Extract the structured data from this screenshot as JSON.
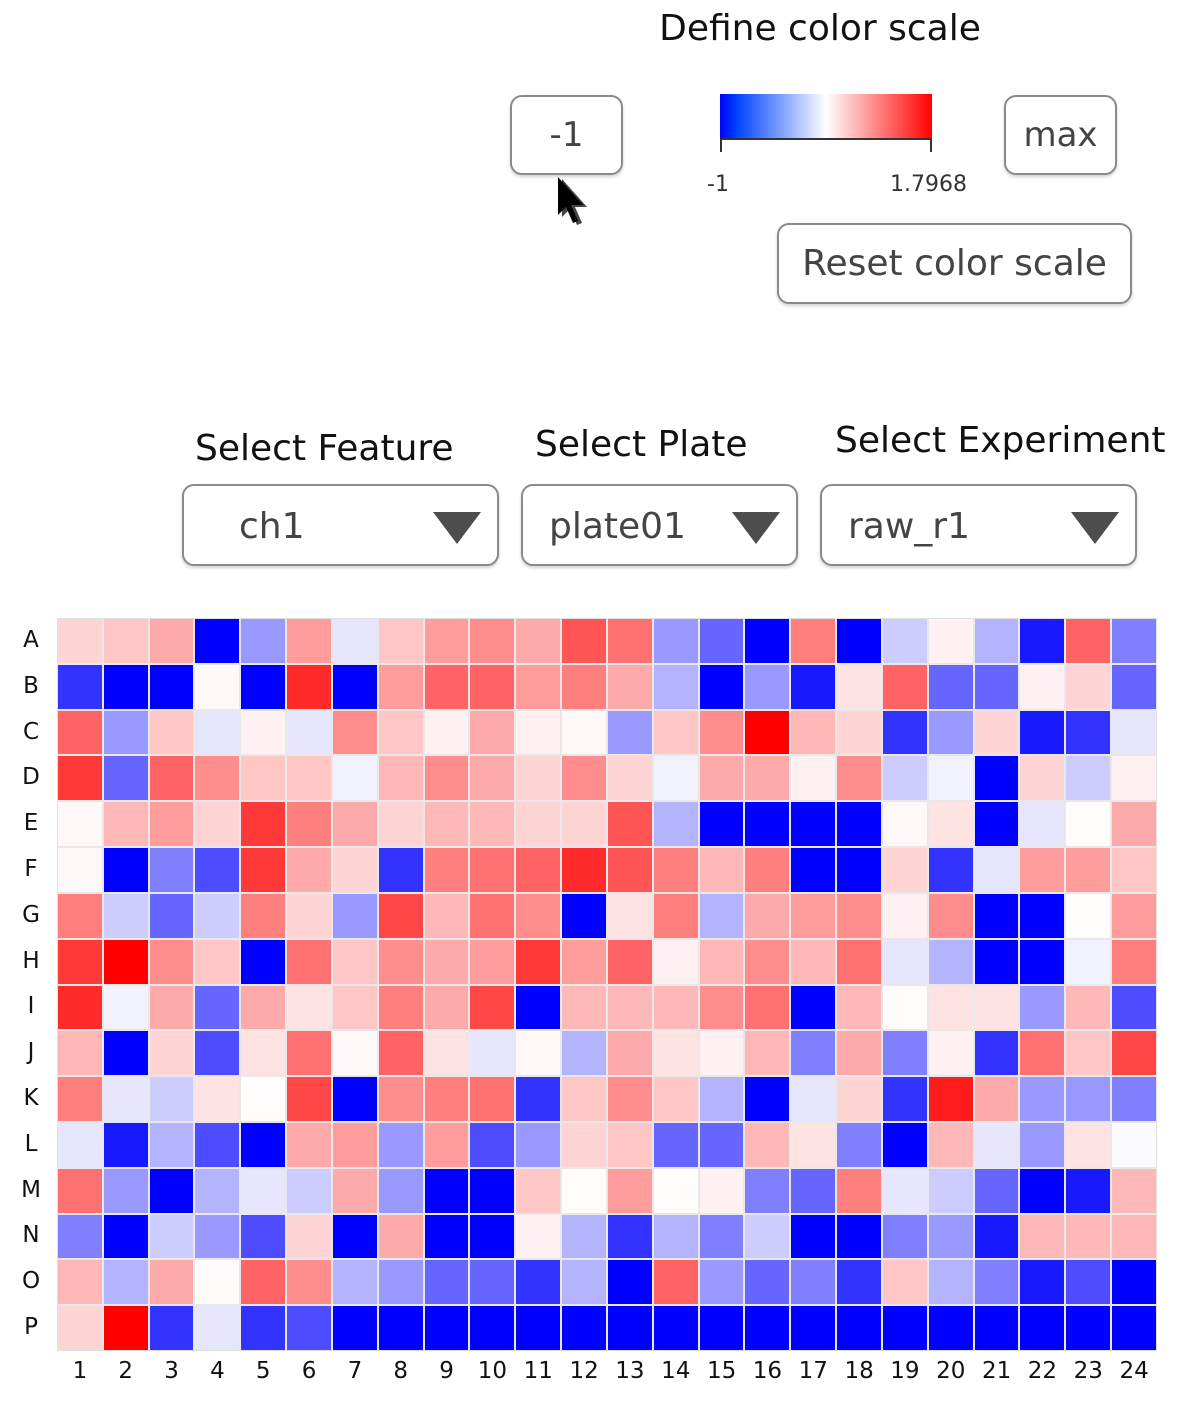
{
  "color_scale": {
    "title": "Define color scale",
    "min_value": "-1",
    "max_value": "max",
    "label_min": "-1",
    "label_max": "1.7968",
    "reset_label": "Reset color scale",
    "colors": {
      "low": "#0000ff",
      "mid": "#ffffff",
      "high": "#ff0000"
    }
  },
  "selectors": {
    "feature": {
      "label": "Select Feature",
      "value": "ch1"
    },
    "plate": {
      "label": "Select Plate",
      "value": "plate01"
    },
    "experiment": {
      "label": "Select Experiment",
      "value": "raw_r1"
    }
  },
  "plate": {
    "rows": [
      "A",
      "B",
      "C",
      "D",
      "E",
      "F",
      "G",
      "H",
      "I",
      "J",
      "K",
      "L",
      "M",
      "N",
      "O",
      "P"
    ],
    "columns": [
      "1",
      "2",
      "3",
      "4",
      "5",
      "6",
      "7",
      "8",
      "9",
      "10",
      "11",
      "12",
      "13",
      "14",
      "15",
      "16",
      "17",
      "18",
      "19",
      "20",
      "21",
      "22",
      "23",
      "24"
    ],
    "values": [
      [
        0.3,
        0.4,
        0.6,
        -1,
        -0.4,
        0.7,
        -0.1,
        0.4,
        0.7,
        0.8,
        0.6,
        1.2,
        1.0,
        -0.4,
        -0.6,
        -1,
        0.9,
        -1,
        -0.2,
        0.1,
        -0.3,
        -0.9,
        1.1,
        -0.5
      ],
      [
        -0.8,
        -1,
        -1,
        0.05,
        -1,
        1.5,
        -1,
        0.7,
        1.1,
        1.1,
        0.7,
        0.9,
        0.6,
        -0.3,
        -1,
        -0.4,
        -0.9,
        0.2,
        1.1,
        -0.6,
        -0.6,
        0.1,
        0.3,
        -0.6
      ],
      [
        1.1,
        -0.4,
        0.4,
        -0.1,
        0.1,
        -0.1,
        0.8,
        0.4,
        0.1,
        0.6,
        0.1,
        0.05,
        -0.4,
        0.4,
        0.8,
        1.8,
        0.5,
        0.3,
        -0.8,
        -0.4,
        0.3,
        -0.9,
        -0.8,
        -0.1
      ],
      [
        1.4,
        -0.6,
        1.1,
        0.8,
        0.4,
        0.4,
        -0.05,
        0.5,
        0.8,
        0.6,
        0.3,
        0.8,
        0.3,
        -0.05,
        0.6,
        0.6,
        0.1,
        0.8,
        -0.2,
        -0.05,
        -1,
        0.3,
        -0.2,
        0.1
      ],
      [
        0.05,
        0.5,
        0.7,
        0.3,
        1.4,
        0.9,
        0.6,
        0.3,
        0.5,
        0.5,
        0.3,
        0.3,
        1.2,
        -0.3,
        -1,
        -1,
        -1,
        -1,
        0.05,
        0.2,
        -1,
        -0.1,
        0.02,
        0.6
      ],
      [
        0.05,
        -1,
        -0.5,
        -0.7,
        1.4,
        0.6,
        0.3,
        -0.8,
        0.9,
        1.0,
        1.1,
        1.5,
        1.2,
        0.9,
        0.5,
        0.9,
        -1,
        -1,
        0.3,
        -0.8,
        -0.1,
        0.7,
        0.7,
        0.4
      ],
      [
        0.9,
        -0.2,
        -0.6,
        -0.2,
        0.9,
        0.3,
        -0.4,
        1.3,
        0.5,
        1.0,
        0.8,
        -1,
        0.2,
        0.9,
        -0.3,
        0.6,
        0.7,
        0.8,
        0.1,
        0.8,
        -1,
        -1,
        0.02,
        0.7
      ],
      [
        1.4,
        1.8,
        0.8,
        0.4,
        -1,
        1.0,
        0.4,
        0.8,
        0.6,
        0.7,
        1.4,
        0.7,
        1.1,
        0.1,
        0.5,
        0.8,
        0.5,
        1.0,
        -0.1,
        -0.3,
        -1,
        -1,
        -0.05,
        0.9
      ],
      [
        1.5,
        -0.05,
        0.6,
        -0.6,
        0.6,
        0.2,
        0.4,
        0.9,
        0.6,
        1.3,
        -1,
        0.5,
        0.5,
        0.5,
        0.8,
        1.0,
        -1,
        0.5,
        0.02,
        0.2,
        0.2,
        -0.4,
        0.5,
        -0.7
      ],
      [
        0.5,
        -1,
        0.3,
        -0.7,
        0.2,
        1.0,
        0.05,
        1.1,
        0.2,
        -0.1,
        0.05,
        -0.3,
        0.6,
        0.2,
        0.1,
        0.5,
        -0.5,
        0.6,
        -0.5,
        0.1,
        -0.8,
        1.0,
        0.4,
        1.3
      ],
      [
        0.9,
        -0.1,
        -0.2,
        0.2,
        0.02,
        1.3,
        -1,
        0.8,
        0.9,
        1.0,
        -0.8,
        0.4,
        0.8,
        0.4,
        -0.3,
        -1,
        -0.1,
        0.3,
        -0.8,
        1.6,
        0.6,
        -0.4,
        -0.4,
        -0.5
      ],
      [
        -0.1,
        -0.9,
        -0.3,
        -0.7,
        -1,
        0.6,
        0.7,
        -0.4,
        0.7,
        -0.7,
        -0.4,
        0.3,
        0.4,
        -0.6,
        -0.6,
        0.5,
        0.2,
        -0.5,
        -1,
        0.5,
        -0.1,
        -0.4,
        0.2,
        -0.02
      ],
      [
        1.0,
        -0.4,
        -1,
        -0.3,
        -0.1,
        -0.2,
        0.6,
        -0.4,
        -1,
        -1,
        0.4,
        0.02,
        0.7,
        0.02,
        0.1,
        -0.5,
        -0.6,
        0.9,
        -0.1,
        -0.2,
        -0.6,
        -1,
        -0.9,
        0.5
      ],
      [
        -0.5,
        -1,
        -0.2,
        -0.4,
        -0.7,
        0.3,
        -1,
        0.6,
        -1,
        -1,
        0.1,
        -0.3,
        -0.8,
        -0.3,
        -0.5,
        -0.2,
        -1,
        -1,
        -0.5,
        -0.4,
        -0.9,
        0.5,
        0.5,
        0.5
      ],
      [
        0.5,
        -0.3,
        0.6,
        0.03,
        1.1,
        0.8,
        -0.3,
        -0.4,
        -0.6,
        -0.6,
        -0.8,
        -0.3,
        -1,
        1.1,
        -0.4,
        -0.6,
        -0.5,
        -0.8,
        0.4,
        -0.3,
        -0.5,
        -0.9,
        -0.7,
        -1
      ],
      [
        0.3,
        1.8,
        -0.8,
        -0.1,
        -0.8,
        -0.7,
        -1,
        -1,
        -1,
        -1,
        -1,
        -1,
        -1,
        -1,
        -1,
        -1,
        -1,
        -1,
        -1,
        -1,
        -1,
        -1,
        -1,
        -1
      ]
    ]
  }
}
